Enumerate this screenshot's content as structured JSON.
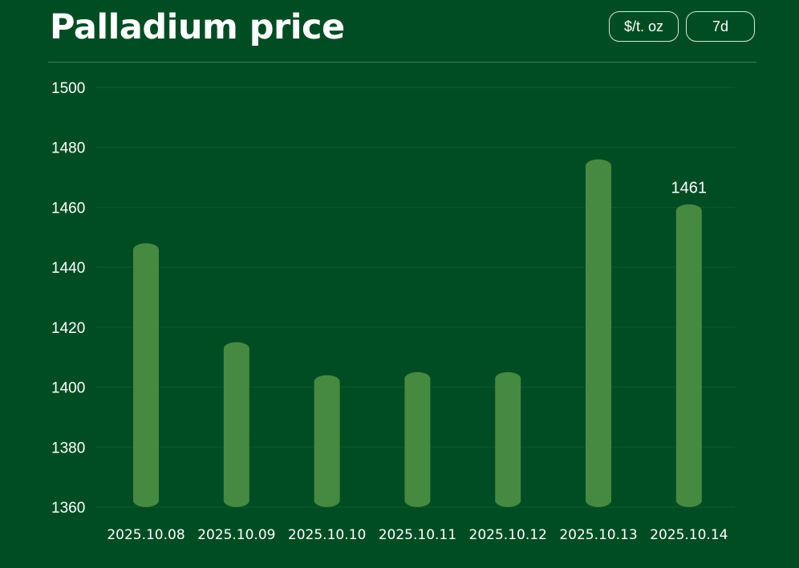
{
  "header": {
    "title": "Palladium price",
    "unit_label": "$/t. oz",
    "range_label": "7d"
  },
  "colors": {
    "background": "#004d23",
    "bar": "#458a40",
    "grid": "#0b5a2c"
  },
  "chart_data": {
    "type": "bar",
    "title": "Palladium price",
    "xlabel": "",
    "ylabel": "",
    "ylim": [
      1360,
      1500
    ],
    "yticks": [
      1360,
      1380,
      1400,
      1420,
      1440,
      1460,
      1480,
      1500
    ],
    "grid": true,
    "categories": [
      "2025.10.08",
      "2025.10.09",
      "2025.10.10",
      "2025.10.11",
      "2025.10.12",
      "2025.10.13",
      "2025.10.14"
    ],
    "values": [
      1448,
      1415,
      1404,
      1405,
      1405,
      1476,
      1461
    ],
    "data_labels": [
      "",
      "",
      "",
      "",
      "",
      "",
      "1461"
    ]
  }
}
